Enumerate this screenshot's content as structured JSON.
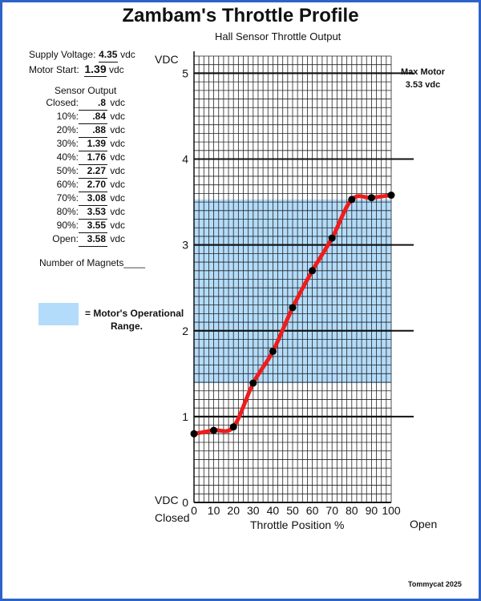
{
  "title": "Zambam's Throttle Profile",
  "subtitle": "Hall Sensor Throttle Output",
  "supply_voltage": {
    "label": "Supply Voltage:",
    "value": "4.35",
    "unit": "vdc"
  },
  "motor_start": {
    "label": "Motor Start:",
    "value": "1.39",
    "unit": "vdc"
  },
  "sensor_heading": "Sensor Output",
  "sensor_rows": [
    {
      "label": "Closed:",
      "value": ".8",
      "unit": "vdc"
    },
    {
      "label": "10%:",
      "value": ".84",
      "unit": "vdc"
    },
    {
      "label": "20%:",
      "value": ".88",
      "unit": "vdc"
    },
    {
      "label": "30%:",
      "value": "1.39",
      "unit": "vdc"
    },
    {
      "label": "40%:",
      "value": "1.76",
      "unit": "vdc"
    },
    {
      "label": "50%:",
      "value": "2.27",
      "unit": "vdc"
    },
    {
      "label": "60%:",
      "value": "2.70",
      "unit": "vdc"
    },
    {
      "label": "70%:",
      "value": "3.08",
      "unit": "vdc"
    },
    {
      "label": "80%:",
      "value": "3.53",
      "unit": "vdc"
    },
    {
      "label": "90%:",
      "value": "3.55",
      "unit": "vdc"
    },
    {
      "label": "Open:",
      "value": "3.58",
      "unit": "vdc"
    }
  ],
  "magnets_label": "Number of Magnets____",
  "legend": {
    "line1": "= Motor's Operational",
    "line2": "Range.",
    "color": "#b3dcfb"
  },
  "max_motor": {
    "line1": "Max Motor",
    "line2": "3.53 vdc"
  },
  "credit": "Tommycat  2025",
  "colors": {
    "frame": "#2d63c8",
    "curve": "#ee1c1c",
    "band": "#b3dcfb",
    "point": "#000000"
  },
  "chart_data": {
    "type": "line",
    "title": "Zambam's Throttle Profile",
    "subtitle": "Hall Sensor Throttle Output",
    "xlabel": "Throttle Position %",
    "ylabel": "VDC",
    "y_axis_bottom_label": "VDC",
    "x_left_label": "Closed",
    "x_right_label": "Open",
    "x": [
      0,
      10,
      20,
      30,
      40,
      50,
      60,
      70,
      80,
      90,
      100
    ],
    "values": [
      0.8,
      0.84,
      0.88,
      1.39,
      1.76,
      2.27,
      2.7,
      3.08,
      3.53,
      3.55,
      3.58
    ],
    "xlim": [
      0,
      100
    ],
    "ylim": [
      0,
      5.2
    ],
    "x_ticks": [
      "0",
      "10",
      "20",
      "30",
      "40",
      "50",
      "60",
      "70",
      "80",
      "90",
      "100"
    ],
    "y_ticks": [
      "0",
      "1",
      "2",
      "3",
      "4",
      "5"
    ],
    "operational_range": [
      1.39,
      3.53
    ],
    "grid": true
  }
}
